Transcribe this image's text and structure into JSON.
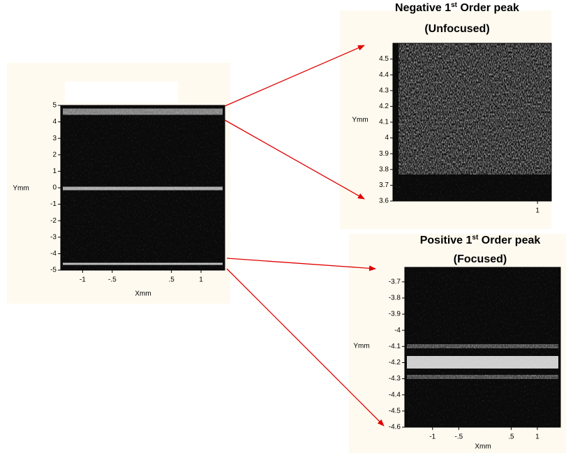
{
  "panels": [
    {
      "ylabel": "Ymm",
      "xlabel": "Xmm",
      "xlim": [
        -1.37,
        1.4
      ],
      "ylim": [
        -5,
        5
      ],
      "yticks": [
        5,
        4,
        3,
        2,
        1,
        0,
        -1,
        -2,
        -3,
        -4,
        -5
      ],
      "xticks": [
        -1,
        {
          "value": -0.5,
          "label": "-.5"
        },
        {
          "value": 0.5,
          "label": ".5"
        },
        1
      ]
    },
    {
      "title_main": "Negative 1",
      "title_sup": "st",
      "title_rest": " Order peak",
      "subtitle": "(Unfocused)",
      "ylabel": "Ymm",
      "xlim": [
        -1.3,
        1.22
      ],
      "ylim": [
        3.6,
        4.6
      ],
      "yticks": [
        4.5,
        4.4,
        4.3,
        4.2,
        4.1,
        4,
        3.9,
        3.8,
        3.7,
        3.6
      ],
      "xticks": [
        1
      ]
    },
    {
      "title_main": "Positive 1",
      "title_sup": "st",
      "title_rest": " Order peak",
      "subtitle": "(Focused)",
      "ylabel": "Ymm",
      "xlabel": "Xmm",
      "xlim": [
        -1.53,
        1.44
      ],
      "ylim": [
        -4.6,
        -3.61
      ],
      "yticks": [
        -3.7,
        -3.8,
        -3.9,
        -4,
        -4.1,
        -4.2,
        -4.3,
        -4.4,
        -4.5,
        -4.6
      ],
      "xticks": [
        -1,
        {
          "value": -0.5,
          "label": "-.5"
        },
        {
          "value": 0.5,
          "label": ".5"
        },
        1
      ]
    }
  ]
}
